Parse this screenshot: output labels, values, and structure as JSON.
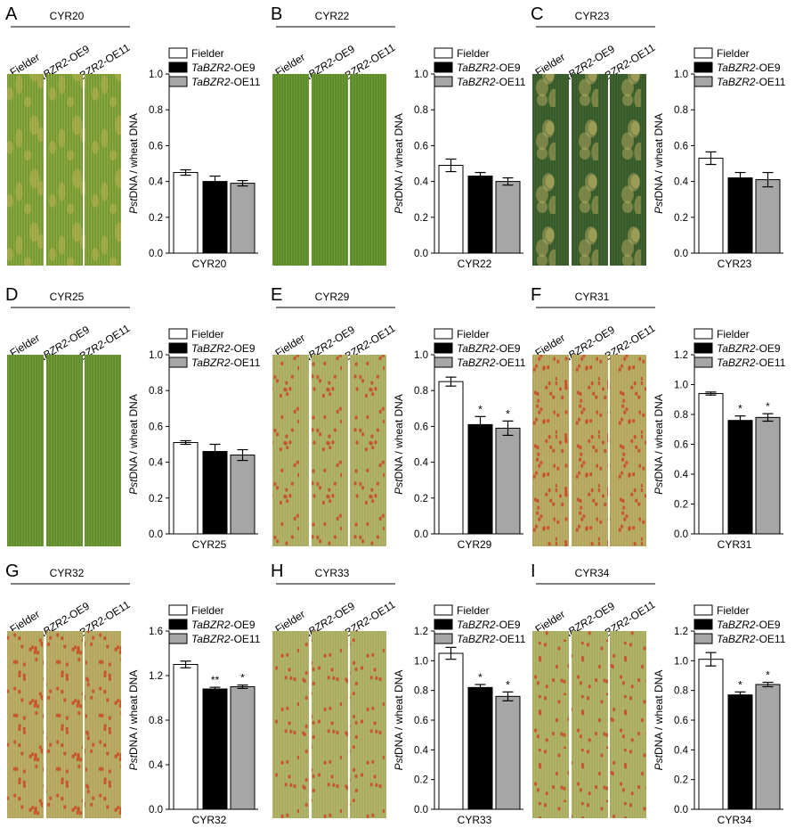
{
  "colors": {
    "fielder": "#ffffff",
    "oe9": "#000000",
    "oe11": "#a6a6a6",
    "leaf_green": "#5e8c2c",
    "leaf_yellow": "#c2b25a",
    "leaf_dark": "#2f5424",
    "rust_red": "#c8502a"
  },
  "leaf_labels": [
    {
      "plain": "Fielder",
      "italic": "",
      "suffix": ""
    },
    {
      "plain": "",
      "italic": "TaBZR2",
      "suffix": "-OE9"
    },
    {
      "plain": "",
      "italic": "TaBZR2",
      "suffix": "-OE11"
    }
  ],
  "legend": [
    {
      "italic": "",
      "text": "Fielder",
      "color": "#ffffff"
    },
    {
      "italic": "TaBZR2",
      "text": "-OE9",
      "color": "#000000"
    },
    {
      "italic": "TaBZR2",
      "text": "-OE11",
      "color": "#a6a6a6"
    }
  ],
  "ylabel": {
    "italic": "Pst",
    "text": "DNA / wheat DNA"
  },
  "chart_data": [
    {
      "panel": "A",
      "strain": "CYR20",
      "type": "bar",
      "leaf_style": "yellow-green",
      "categories": [
        "Fielder",
        "TaBZR2-OE9",
        "TaBZR2-OE11"
      ],
      "values": [
        0.45,
        0.4,
        0.39
      ],
      "errors": [
        0.015,
        0.03,
        0.015
      ],
      "significance": [
        "",
        "",
        ""
      ],
      "ylim": [
        0,
        1.0
      ],
      "yticks": [
        "0.0",
        "0.2",
        "0.4",
        "0.6",
        "0.8",
        "1.0"
      ],
      "xlabel": "CYR20"
    },
    {
      "panel": "B",
      "strain": "CYR22",
      "type": "bar",
      "leaf_style": "green",
      "categories": [
        "Fielder",
        "TaBZR2-OE9",
        "TaBZR2-OE11"
      ],
      "values": [
        0.49,
        0.43,
        0.4
      ],
      "errors": [
        0.035,
        0.02,
        0.02
      ],
      "significance": [
        "",
        "",
        ""
      ],
      "ylim": [
        0,
        1.0
      ],
      "yticks": [
        "0.0",
        "0.2",
        "0.4",
        "0.6",
        "0.8",
        "1.0"
      ],
      "xlabel": "CYR22"
    },
    {
      "panel": "C",
      "strain": "CYR23",
      "type": "bar",
      "leaf_style": "dark-mottled",
      "categories": [
        "Fielder",
        "TaBZR2-OE9",
        "TaBZR2-OE11"
      ],
      "values": [
        0.53,
        0.42,
        0.41
      ],
      "errors": [
        0.035,
        0.03,
        0.04
      ],
      "significance": [
        "",
        "",
        ""
      ],
      "ylim": [
        0,
        1.0
      ],
      "yticks": [
        "0.0",
        "0.2",
        "0.4",
        "0.6",
        "0.8",
        "1.0"
      ],
      "xlabel": "CYR23"
    },
    {
      "panel": "D",
      "strain": "CYR25",
      "type": "bar",
      "leaf_style": "green-stripe",
      "categories": [
        "Fielder",
        "TaBZR2-OE9",
        "TaBZR2-OE11"
      ],
      "values": [
        0.51,
        0.46,
        0.44
      ],
      "errors": [
        0.01,
        0.04,
        0.03
      ],
      "significance": [
        "",
        "",
        ""
      ],
      "ylim": [
        0,
        1.0
      ],
      "yticks": [
        "0.0",
        "0.2",
        "0.4",
        "0.6",
        "0.8",
        "1.0"
      ],
      "xlabel": "CYR25"
    },
    {
      "panel": "E",
      "strain": "CYR29",
      "type": "bar",
      "leaf_style": "rust-light",
      "categories": [
        "Fielder",
        "TaBZR2-OE9",
        "TaBZR2-OE11"
      ],
      "values": [
        0.85,
        0.61,
        0.59
      ],
      "errors": [
        0.025,
        0.045,
        0.04
      ],
      "significance": [
        "",
        "*",
        "*"
      ],
      "ylim": [
        0,
        1.0
      ],
      "yticks": [
        "0.0",
        "0.2",
        "0.4",
        "0.6",
        "0.8",
        "1.0"
      ],
      "xlabel": "CYR29"
    },
    {
      "panel": "F",
      "strain": "CYR31",
      "type": "bar",
      "leaf_style": "rust-heavy",
      "categories": [
        "Fielder",
        "TaBZR2-OE9",
        "TaBZR2-OE11"
      ],
      "values": [
        0.94,
        0.76,
        0.78
      ],
      "errors": [
        0.01,
        0.03,
        0.025
      ],
      "significance": [
        "",
        "*",
        "*"
      ],
      "ylim": [
        0,
        1.2
      ],
      "yticks": [
        "0.0",
        "0.2",
        "0.4",
        "0.6",
        "0.8",
        "1.0",
        "1.2"
      ],
      "xlabel": "CYR31"
    },
    {
      "panel": "G",
      "strain": "CYR32",
      "type": "bar",
      "leaf_style": "rust-heavy",
      "categories": [
        "Fielder",
        "TaBZR2-OE9",
        "TaBZR2-OE11"
      ],
      "values": [
        1.3,
        1.08,
        1.1
      ],
      "errors": [
        0.03,
        0.015,
        0.015
      ],
      "significance": [
        "",
        "**",
        "*"
      ],
      "ylim": [
        0,
        1.6
      ],
      "yticks": [
        "0.0",
        "0.4",
        "0.8",
        "1.2",
        "1.6"
      ],
      "xlabel": "CYR32"
    },
    {
      "panel": "H",
      "strain": "CYR33",
      "type": "bar",
      "leaf_style": "rust-light",
      "categories": [
        "Fielder",
        "TaBZR2-OE9",
        "TaBZR2-OE11"
      ],
      "values": [
        1.05,
        0.82,
        0.76
      ],
      "errors": [
        0.04,
        0.02,
        0.03
      ],
      "significance": [
        "",
        "*",
        "*"
      ],
      "ylim": [
        0,
        1.2
      ],
      "yticks": [
        "0.0",
        "0.2",
        "0.4",
        "0.6",
        "0.8",
        "1.0",
        "1.2"
      ],
      "xlabel": "CYR33"
    },
    {
      "panel": "I",
      "strain": "CYR34",
      "type": "bar",
      "leaf_style": "rust-light",
      "categories": [
        "Fielder",
        "TaBZR2-OE9",
        "TaBZR2-OE11"
      ],
      "values": [
        1.01,
        0.77,
        0.84
      ],
      "errors": [
        0.045,
        0.02,
        0.015
      ],
      "significance": [
        "",
        "*",
        "*"
      ],
      "ylim": [
        0,
        1.2
      ],
      "yticks": [
        "0.0",
        "0.2",
        "0.4",
        "0.6",
        "0.8",
        "1.0",
        "1.2"
      ],
      "xlabel": "CYR34"
    }
  ]
}
